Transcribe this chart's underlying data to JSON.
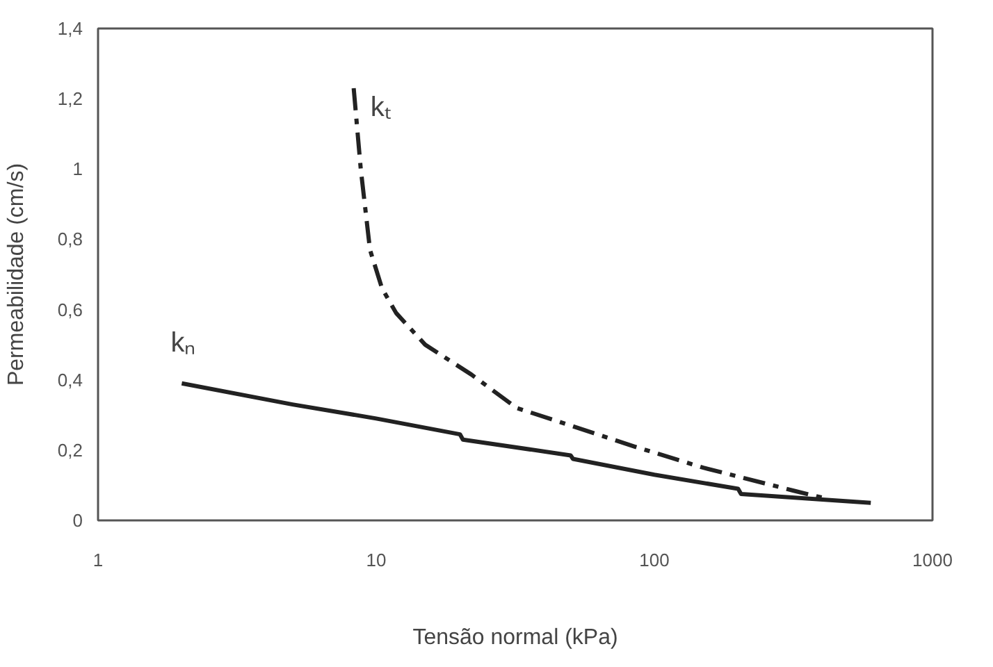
{
  "chart_data": {
    "type": "line",
    "xlabel": "Tensão normal (kPa)",
    "ylabel": "Permeabilidade (cm/s)",
    "log": "x",
    "grid": false,
    "xlim": [
      1,
      1000
    ],
    "xticks": [
      1,
      10,
      100,
      1000
    ],
    "ylim": [
      0,
      1.4
    ],
    "yticks": [
      0,
      {
        "value": 0.2,
        "label": "0,2"
      },
      {
        "value": 0.4,
        "label": "0,4"
      },
      {
        "value": 0.6,
        "label": "0,6"
      },
      {
        "value": 0.8,
        "label": "0,8"
      },
      1,
      {
        "value": 1.2,
        "label": "1,2"
      },
      {
        "value": 1.4,
        "label": "1,4"
      }
    ],
    "series": [
      {
        "name": "kₙ",
        "color": "#222222",
        "line_style": "solid",
        "x": [
          2,
          5,
          10,
          20,
          20.5,
          50,
          51,
          100,
          200,
          205,
          600
        ],
        "values": [
          0.39,
          0.33,
          0.29,
          0.245,
          0.23,
          0.185,
          0.175,
          0.13,
          0.09,
          0.075,
          0.05
        ]
      },
      {
        "name": "kₜ",
        "color": "#222222",
        "line_style": "dashed",
        "x": [
          8.3,
          8.8,
          9.5,
          10.5,
          11.8,
          15,
          22,
          32,
          50,
          85,
          150,
          315,
          425
        ],
        "values": [
          1.23,
          1.0,
          0.77,
          0.66,
          0.59,
          0.5,
          0.415,
          0.32,
          0.27,
          0.21,
          0.15,
          0.085,
          0.06
        ]
      }
    ]
  }
}
